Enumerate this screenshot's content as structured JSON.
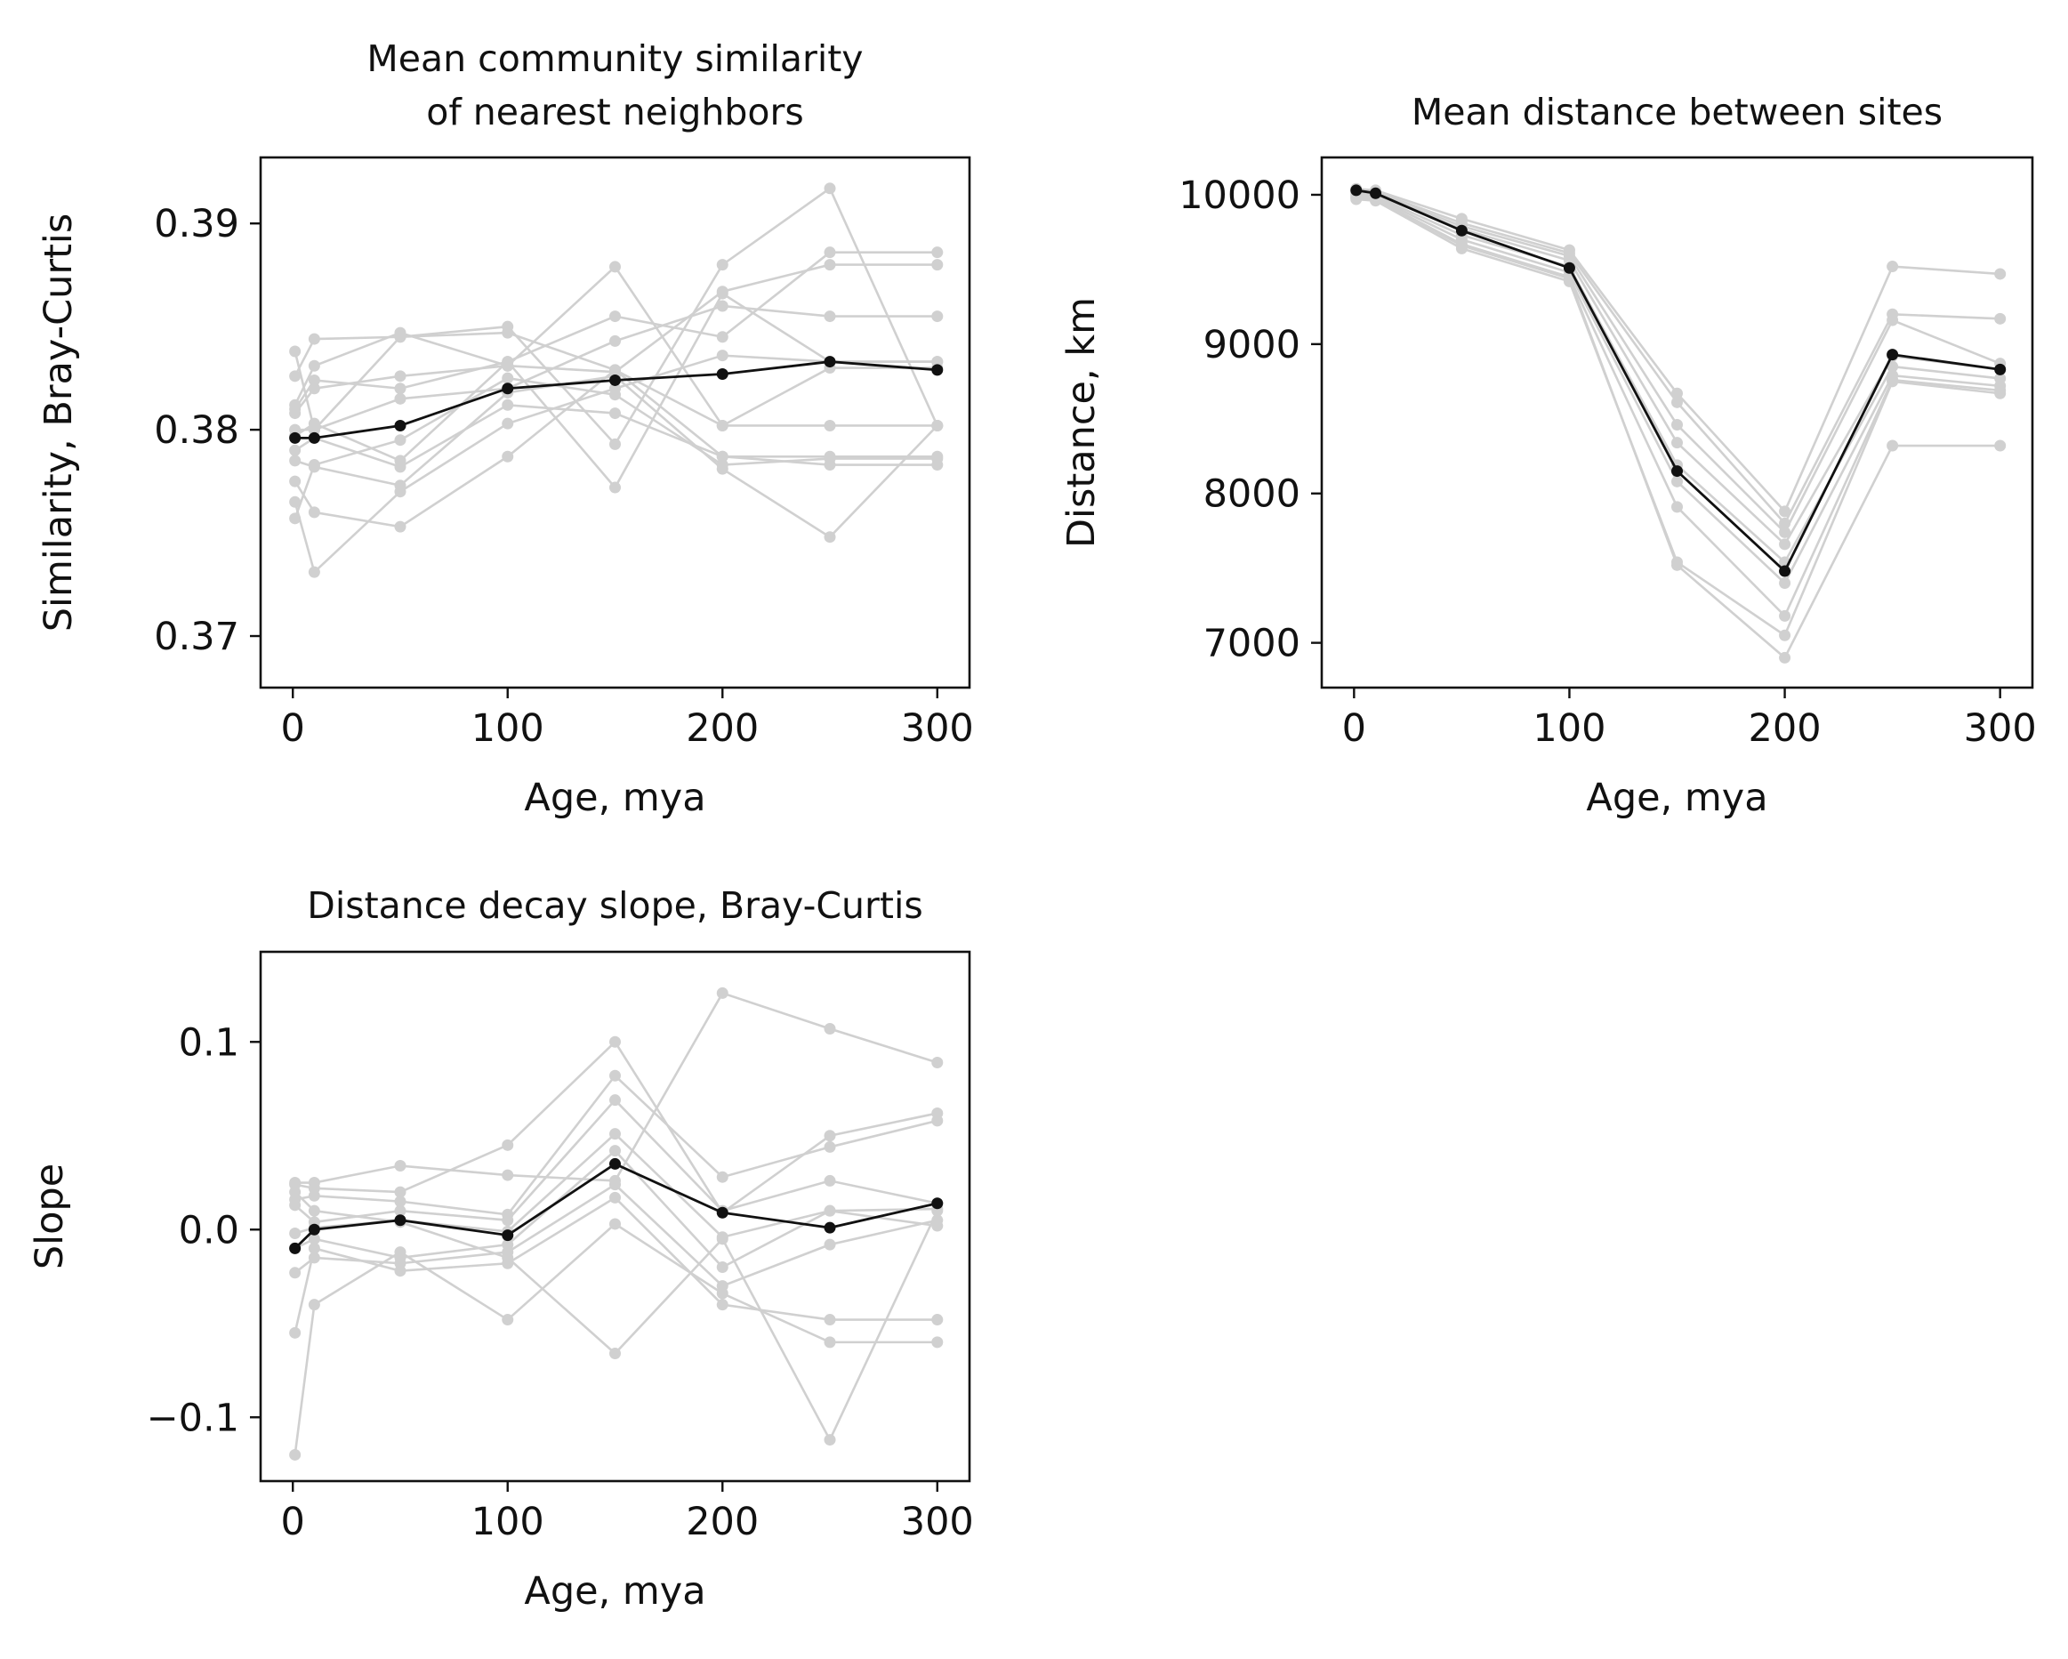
{
  "chart_data": [
    {
      "type": "line",
      "title_lines": [
        "Mean community similarity",
        "of nearest neighbors"
      ],
      "xlabel": "Age, mya",
      "ylabel": "Similarity, Bray-Curtis",
      "x": [
        1,
        10,
        50,
        100,
        150,
        200,
        250,
        300
      ],
      "xlim": [
        -15,
        315
      ],
      "ylim": [
        0.3675,
        0.3932
      ],
      "xticks": [
        0,
        100,
        200,
        300
      ],
      "xtick_labels": [
        "0",
        "100",
        "200",
        "300"
      ],
      "yticks": [
        0.37,
        0.38,
        0.39
      ],
      "ytick_labels": [
        "0.37",
        "0.38",
        "0.39"
      ],
      "grid": false,
      "replicate_color": "#d0d0d0",
      "mean_color": "#111111",
      "replicates": [
        [
          0.3838,
          0.38,
          0.3845,
          0.3847,
          0.3829,
          0.3787,
          0.3787,
          0.3787
        ],
        [
          0.3826,
          0.3844,
          0.3845,
          0.385,
          0.3793,
          0.388,
          0.3917,
          0.3802
        ],
        [
          0.3812,
          0.3831,
          0.3847,
          0.3831,
          0.3879,
          0.3802,
          0.3802,
          0.3802
        ],
        [
          0.381,
          0.3824,
          0.382,
          0.3833,
          0.3855,
          0.3845,
          0.3886,
          0.3886
        ],
        [
          0.3808,
          0.382,
          0.3826,
          0.3831,
          0.3828,
          0.3867,
          0.388,
          0.388
        ],
        [
          0.38,
          0.38,
          0.3815,
          0.382,
          0.3843,
          0.386,
          0.3855,
          0.3855
        ],
        [
          0.3797,
          0.3803,
          0.3785,
          0.3833,
          0.3772,
          0.3866,
          0.3833,
          0.3833
        ],
        [
          0.379,
          0.3796,
          0.3782,
          0.3812,
          0.3808,
          0.3787,
          0.3783,
          0.3783
        ],
        [
          0.3785,
          0.3782,
          0.3773,
          0.3818,
          0.3826,
          0.3781,
          0.3748,
          0.3802
        ],
        [
          0.3775,
          0.376,
          0.3753,
          0.3787,
          0.3829,
          0.3802,
          0.383,
          0.383
        ],
        [
          0.3765,
          0.3731,
          0.377,
          0.3803,
          0.382,
          0.3836,
          0.3833,
          0.3833
        ],
        [
          0.3757,
          0.3783,
          0.3795,
          0.3825,
          0.3817,
          0.3783,
          0.3786,
          0.3786
        ]
      ],
      "mean": [
        0.3796,
        0.3796,
        0.3802,
        0.382,
        0.3824,
        0.3827,
        0.3833,
        0.3829
      ]
    },
    {
      "type": "line",
      "title_lines": [
        "Mean distance between sites"
      ],
      "xlabel": "Age, mya",
      "ylabel": "Distance, km",
      "x": [
        1,
        10,
        50,
        100,
        150,
        200,
        250,
        300
      ],
      "xlim": [
        -15,
        315
      ],
      "ylim": [
        6700,
        10250
      ],
      "xticks": [
        0,
        100,
        200,
        300
      ],
      "xtick_labels": [
        "0",
        "100",
        "200",
        "300"
      ],
      "yticks": [
        7000,
        8000,
        9000,
        10000
      ],
      "ytick_labels": [
        "7000",
        "8000",
        "9000",
        "10000"
      ],
      "grid": false,
      "replicate_color": "#d0d0d0",
      "mean_color": "#111111",
      "replicates": [
        [
          10040,
          10030,
          9840,
          9630,
          8670,
          7880,
          9520,
          9470
        ],
        [
          10030,
          10020,
          9810,
          9610,
          8610,
          7800,
          9200,
          9170
        ],
        [
          10020,
          10010,
          9790,
          9590,
          8460,
          7740,
          9160,
          8870
        ],
        [
          10010,
          10000,
          9770,
          9560,
          8340,
          7660,
          8920,
          8830
        ],
        [
          10000,
          9990,
          9730,
          9520,
          8190,
          7540,
          8850,
          8770
        ],
        [
          9990,
          9980,
          9700,
          9480,
          8080,
          7400,
          8790,
          8720
        ],
        [
          9980,
          9970,
          9670,
          9450,
          7910,
          7180,
          8760,
          8690
        ],
        [
          9970,
          9960,
          9640,
          9420,
          7540,
          7050,
          8750,
          8670
        ],
        [
          9980,
          9970,
          9660,
          9440,
          7520,
          6900,
          8320,
          8320
        ]
      ],
      "mean": [
        10030,
        10010,
        9760,
        9510,
        8150,
        7480,
        8930,
        8830
      ]
    },
    {
      "type": "line",
      "title_lines": [
        "Distance decay slope, Bray-Curtis"
      ],
      "xlabel": "Age, mya",
      "ylabel": "Slope",
      "x": [
        1,
        10,
        50,
        100,
        150,
        200,
        250,
        300
      ],
      "xlim": [
        -15,
        315
      ],
      "ylim": [
        -0.134,
        0.148
      ],
      "xticks": [
        0,
        100,
        200,
        300
      ],
      "xtick_labels": [
        "0",
        "100",
        "200",
        "300"
      ],
      "yticks": [
        -0.1,
        0.0,
        0.1
      ],
      "ytick_labels": [
        "−0.1",
        "0.0",
        "0.1"
      ],
      "grid": false,
      "replicate_color": "#d0d0d0",
      "mean_color": "#111111",
      "replicates": [
        [
          0.025,
          0.025,
          0.034,
          0.029,
          0.026,
          0.126,
          0.107,
          0.089
        ],
        [
          0.024,
          0.022,
          0.02,
          0.045,
          0.1,
          0.009,
          0.05,
          0.062
        ],
        [
          0.016,
          0.018,
          0.015,
          0.008,
          0.082,
          0.028,
          0.044,
          0.058
        ],
        [
          0.013,
          0.004,
          0.01,
          0.005,
          0.069,
          0.01,
          0.026,
          0.014
        ],
        [
          -0.002,
          0.001,
          0.005,
          -0.001,
          0.051,
          -0.004,
          0.01,
          0.011
        ],
        [
          -0.01,
          -0.005,
          -0.015,
          -0.008,
          0.042,
          -0.02,
          0.01,
          0.002
        ],
        [
          -0.023,
          -0.015,
          -0.018,
          -0.012,
          0.024,
          -0.03,
          -0.008,
          0.005
        ],
        [
          -0.055,
          -0.01,
          -0.022,
          -0.018,
          0.017,
          -0.04,
          -0.048,
          -0.048
        ],
        [
          -0.12,
          -0.04,
          -0.012,
          -0.048,
          0.003,
          -0.034,
          -0.06,
          -0.06
        ],
        [
          0.02,
          0.01,
          0.004,
          -0.015,
          -0.066,
          -0.005,
          -0.112,
          0.01
        ]
      ],
      "mean": [
        -0.01,
        0.0,
        0.005,
        -0.003,
        0.035,
        0.009,
        0.001,
        0.014
      ]
    }
  ]
}
